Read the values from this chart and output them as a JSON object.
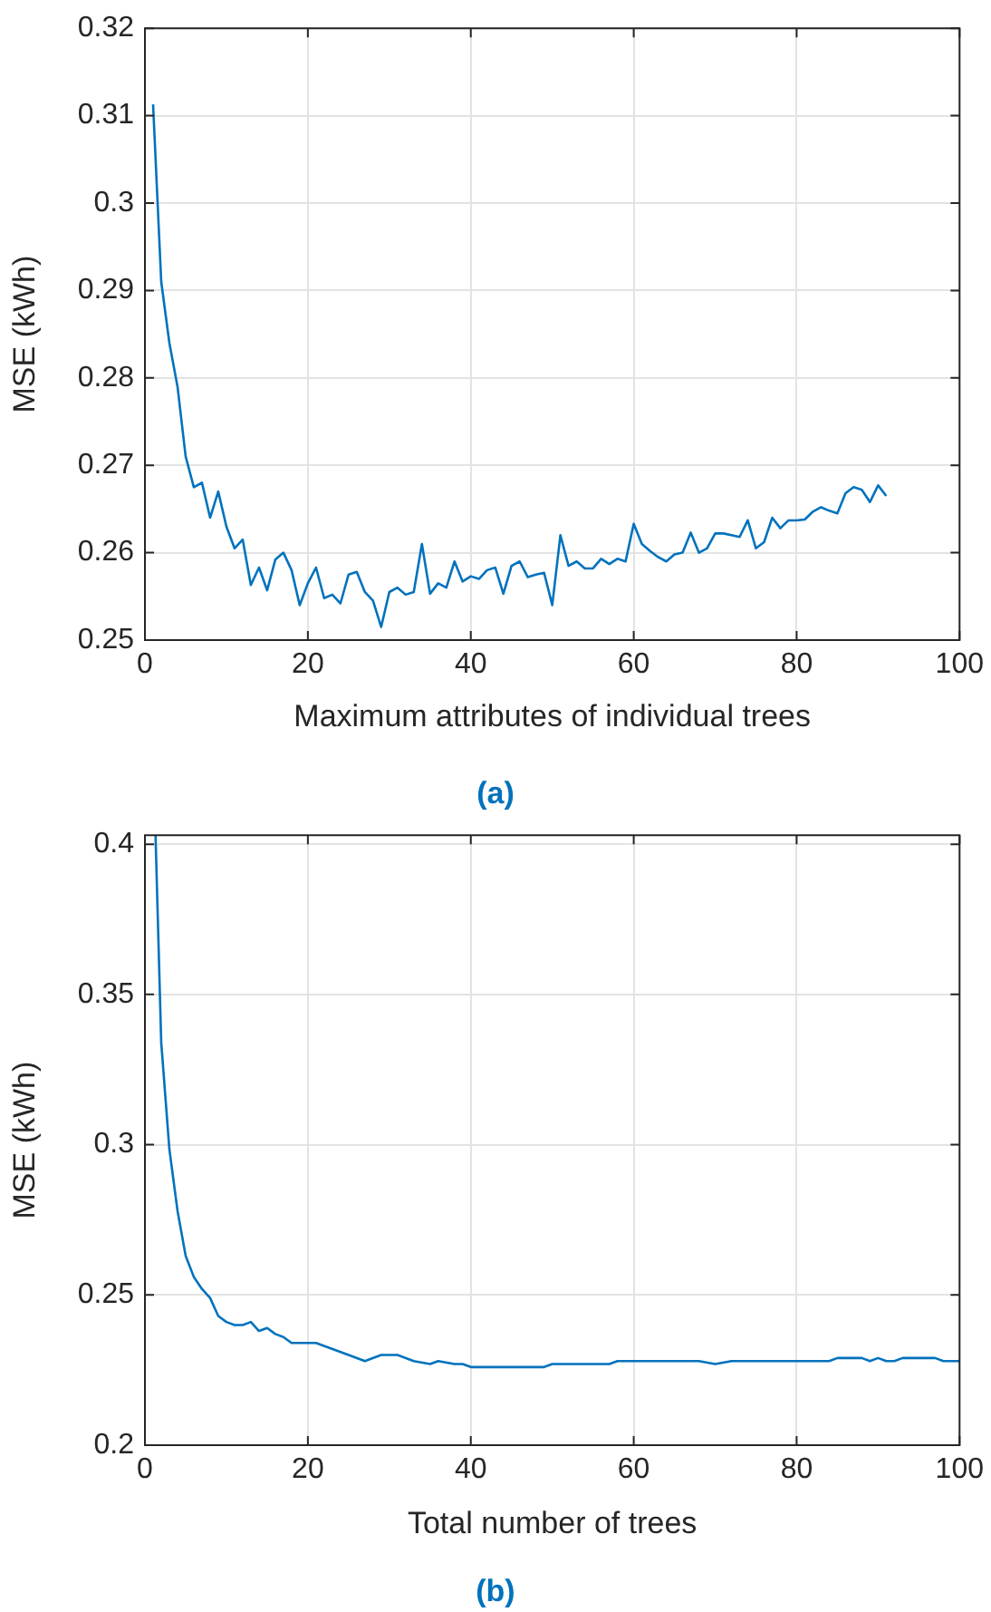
{
  "chart_data": [
    {
      "type": "line",
      "xlabel": "Maximum attributes of individual trees",
      "ylabel": "MSE (kWh)",
      "annotations": [
        "(a)"
      ],
      "xlim": [
        0,
        100
      ],
      "xticks": [
        0,
        20,
        40,
        60,
        80,
        100
      ],
      "ylim": [
        0.25,
        0.32
      ],
      "yticks": [
        0.25,
        0.26,
        0.27,
        0.28,
        0.29,
        0.3,
        0.31,
        0.32
      ],
      "grid": true,
      "legend": false,
      "marker": "none",
      "line_style": "solid",
      "series": [
        {
          "color": "#0072bd",
          "x": [
            1,
            2,
            3,
            4,
            5,
            6,
            7,
            8,
            9,
            10,
            11,
            12,
            13,
            14,
            15,
            16,
            17,
            18,
            19,
            20,
            21,
            22,
            23,
            24,
            25,
            26,
            27,
            28,
            29,
            30,
            31,
            32,
            33,
            34,
            35,
            36,
            37,
            38,
            39,
            40,
            41,
            42,
            43,
            44,
            45,
            46,
            47,
            48,
            49,
            50,
            51,
            52,
            53,
            54,
            55,
            56,
            57,
            58,
            59,
            60,
            61,
            62,
            63,
            64,
            65,
            66,
            67,
            68,
            69,
            70,
            71,
            72,
            73,
            74,
            75,
            76,
            77,
            78,
            79,
            80,
            81,
            82,
            83,
            84,
            85,
            86,
            87,
            88,
            89,
            90,
            91
          ],
          "values": [
            0.3113,
            0.291,
            0.284,
            0.279,
            0.271,
            0.2675,
            0.268,
            0.264,
            0.267,
            0.263,
            0.2605,
            0.2615,
            0.2563,
            0.2583,
            0.2557,
            0.2592,
            0.26,
            0.258,
            0.254,
            0.2565,
            0.2583,
            0.2548,
            0.2552,
            0.2542,
            0.2575,
            0.2578,
            0.2555,
            0.2545,
            0.2515,
            0.2555,
            0.256,
            0.2552,
            0.2555,
            0.261,
            0.2553,
            0.2565,
            0.256,
            0.259,
            0.2567,
            0.2573,
            0.257,
            0.258,
            0.2583,
            0.2553,
            0.2585,
            0.259,
            0.2572,
            0.2575,
            0.2577,
            0.254,
            0.262,
            0.2585,
            0.259,
            0.2582,
            0.2582,
            0.2593,
            0.2587,
            0.2593,
            0.259,
            0.2633,
            0.261,
            0.2602,
            0.2595,
            0.259,
            0.2598,
            0.26,
            0.2623,
            0.26,
            0.2605,
            0.2622,
            0.2622,
            0.262,
            0.2618,
            0.2637,
            0.2605,
            0.2612,
            0.264,
            0.2628,
            0.2637,
            0.2637,
            0.2638,
            0.2647,
            0.2652,
            0.2648,
            0.2645,
            0.2668,
            0.2675,
            0.2672,
            0.2658,
            0.2677,
            0.2665
          ]
        }
      ]
    },
    {
      "type": "line",
      "xlabel": "Total number of trees",
      "ylabel": "MSE (kWh)",
      "annotations": [
        "(b)"
      ],
      "xlim": [
        0,
        100
      ],
      "xticks": [
        0,
        20,
        40,
        60,
        80,
        100
      ],
      "ylim": [
        0.2,
        0.403
      ],
      "yticks": [
        0.2,
        0.25,
        0.3,
        0.35,
        0.4
      ],
      "grid": true,
      "legend": false,
      "marker": "none",
      "line_style": "solid",
      "series": [
        {
          "color": "#0072bd",
          "x": [
            1.3,
            2,
            3,
            4,
            5,
            6,
            7,
            8,
            9,
            10,
            11,
            12,
            13,
            14,
            15,
            16,
            17,
            18,
            20,
            21,
            25,
            27,
            29,
            31,
            33,
            35,
            36,
            38,
            39,
            40,
            49,
            50,
            57,
            58,
            68,
            70,
            72,
            84,
            85,
            88,
            89,
            90,
            91,
            92,
            93,
            97,
            98,
            100
          ],
          "values": [
            0.403,
            0.334,
            0.2985,
            0.278,
            0.263,
            0.256,
            0.252,
            0.249,
            0.243,
            0.241,
            0.24,
            0.24,
            0.241,
            0.238,
            0.239,
            0.237,
            0.236,
            0.234,
            0.234,
            0.234,
            0.23,
            0.228,
            0.23,
            0.23,
            0.228,
            0.227,
            0.228,
            0.227,
            0.227,
            0.226,
            0.226,
            0.227,
            0.227,
            0.228,
            0.228,
            0.227,
            0.228,
            0.228,
            0.229,
            0.229,
            0.228,
            0.229,
            0.228,
            0.228,
            0.229,
            0.229,
            0.228,
            0.228
          ]
        }
      ]
    }
  ]
}
